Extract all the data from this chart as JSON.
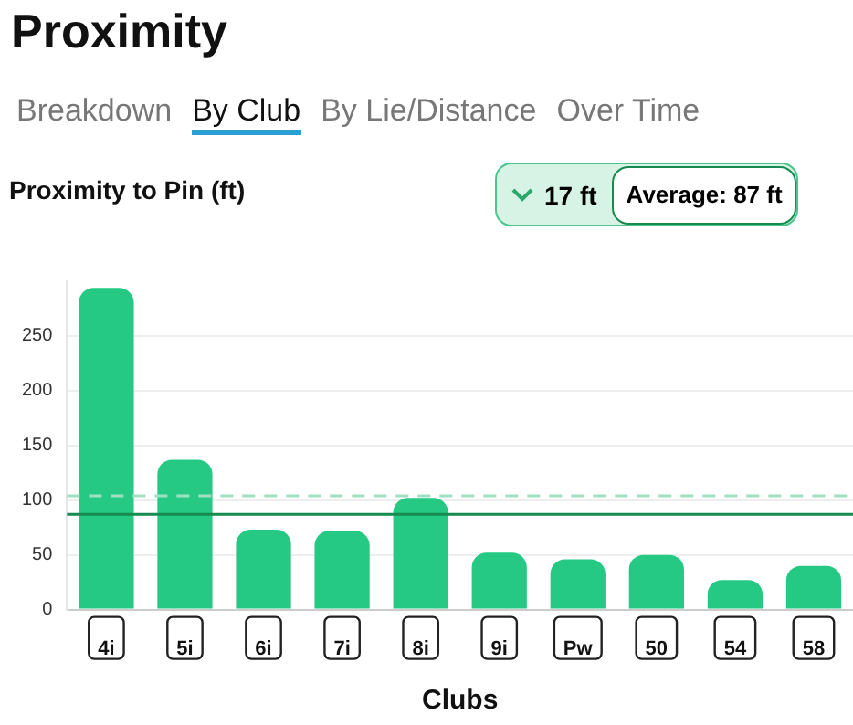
{
  "chart_data": {
    "type": "bar",
    "title": "Proximity",
    "subtitle": "Proximity to Pin (ft)",
    "xlabel": "Clubs",
    "categories": [
      "4i",
      "5i",
      "6i",
      "7i",
      "8i",
      "9i",
      "Pw",
      "50",
      "54",
      "58"
    ],
    "values": [
      294,
      137,
      73,
      72,
      102,
      52,
      46,
      50,
      27,
      40
    ],
    "color": "#26c984",
    "ylim": [
      0,
      300
    ],
    "yticks": [
      0,
      50,
      100,
      150,
      200,
      250
    ],
    "grid": "y",
    "legend": false,
    "ref_lines": [
      {
        "axis": "y",
        "value": 87,
        "label": null,
        "color": "#178a4f",
        "line_style": "solid"
      },
      {
        "axis": "y",
        "value": 104,
        "label": null,
        "color": "#9fdfc2",
        "line_style": "dashed"
      }
    ],
    "annotations": [
      "Breakdown",
      "By Club",
      "By Lie/Distance",
      "Over Time",
      "17 ft",
      "Average: 87 ft"
    ]
  }
}
